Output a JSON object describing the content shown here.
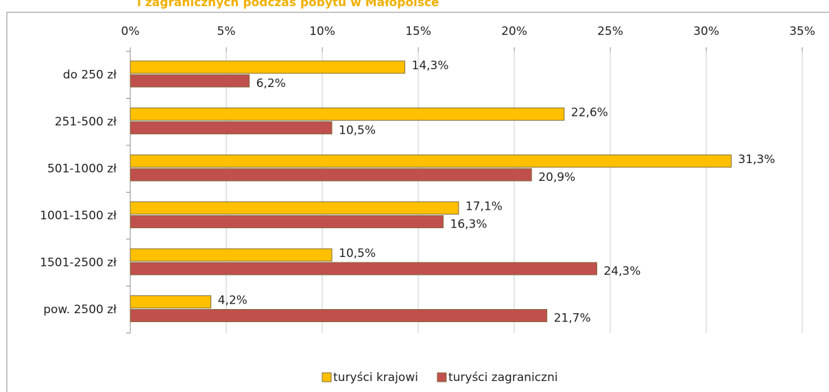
{
  "chart_data": {
    "type": "barh",
    "title": "i zagranicznych podczas pobytu w Małopolsce",
    "categories": [
      "do 250 zł",
      "251-500 zł",
      "501-1000 zł",
      "1001-1500 zł",
      "1501-2500 zł",
      "pow. 2500 zł"
    ],
    "series": [
      {
        "name": "turyści krajowi",
        "color": "#ffc000",
        "values": [
          14.3,
          22.6,
          31.3,
          17.1,
          10.5,
          4.2
        ],
        "value_labels": [
          "14,3%",
          "22,6%",
          "31,3%",
          "17,1%",
          "10,5%",
          "4,2%"
        ]
      },
      {
        "name": "turyści zagraniczni",
        "color": "#c0504d",
        "values": [
          6.2,
          10.5,
          20.9,
          16.3,
          24.3,
          21.7
        ],
        "value_labels": [
          "6,2%",
          "10,5%",
          "20,9%",
          "16,3%",
          "24,3%",
          "21,7%"
        ]
      }
    ],
    "xlim": [
      0,
      35
    ],
    "xticks": [
      {
        "value": 0,
        "label": "0%"
      },
      {
        "value": 5,
        "label": "5%"
      },
      {
        "value": 10,
        "label": "10%"
      },
      {
        "value": 15,
        "label": "15%"
      },
      {
        "value": 20,
        "label": "20%"
      },
      {
        "value": 25,
        "label": "25%"
      },
      {
        "value": 30,
        "label": "30%"
      },
      {
        "value": 35,
        "label": "35%"
      }
    ],
    "grid": true,
    "legend": "bottom"
  }
}
